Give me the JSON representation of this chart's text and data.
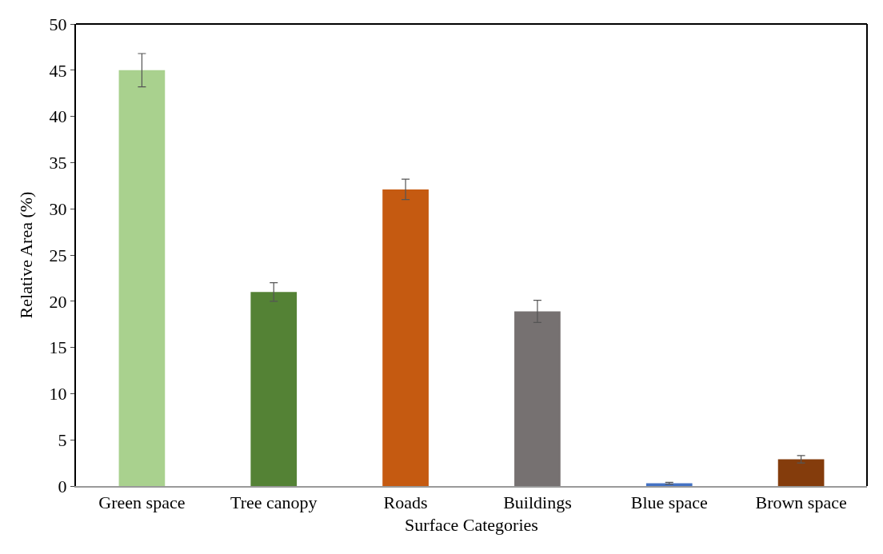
{
  "chart_data": {
    "type": "bar",
    "xlabel": "Surface Categories",
    "ylabel": "Relative Area (%)",
    "categories": [
      "Green space",
      "Tree canopy",
      "Roads",
      "Buildings",
      "Blue space",
      "Brown space"
    ],
    "values": [
      45.0,
      21.0,
      32.1,
      18.9,
      0.3,
      2.9
    ],
    "errors": [
      1.8,
      1.0,
      1.1,
      1.2,
      0.1,
      0.4
    ],
    "colors": [
      "#a9d18e",
      "#548235",
      "#c55a11",
      "#767171",
      "#4472c4",
      "#843c0c"
    ],
    "ylim": [
      0,
      50
    ],
    "yticks": [
      0,
      5,
      10,
      15,
      20,
      25,
      30,
      35,
      40,
      45,
      50
    ]
  }
}
